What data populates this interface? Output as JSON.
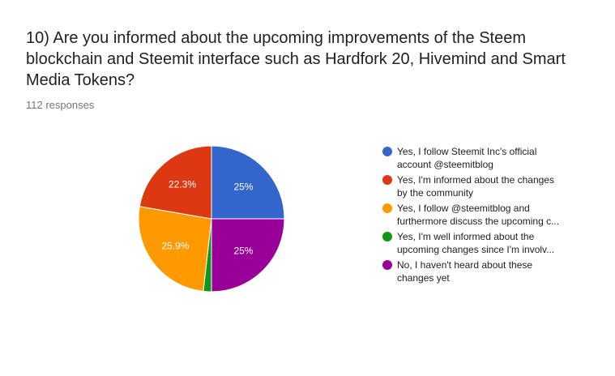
{
  "question": {
    "title": "10) Are you informed about the upcoming improvements of the Steem blockchain and Steemit interface such as Hardfork 20, Hivemind and Smart Media Tokens?",
    "responses": "112 responses"
  },
  "chart_data": {
    "type": "pie",
    "title": "10) Are you informed about the upcoming improvements of the Steem blockchain and Steemit interface such as Hardfork 20, Hivemind and Smart Media Tokens?",
    "total_responses": 112,
    "start": "12 o'clock, clockwise",
    "slices": [
      {
        "category": "Yes, I follow Steemit Inc's official account @steemitblog",
        "legend_lines": [
          "Yes, I follow Steemit Inc's official",
          "account @steemitblog"
        ],
        "percent": 25,
        "label": "25%",
        "color": "#3366cc"
      },
      {
        "category": "No, I haven't heard about these changes yet",
        "legend_lines": [
          "No, I haven't heard about these",
          "changes yet"
        ],
        "percent": 25,
        "label": "25%",
        "color": "#990099"
      },
      {
        "category": "Yes, I'm well informed about the upcoming changes since I'm involv...",
        "legend_lines": [
          "Yes, I'm well informed about the",
          "upcoming changes since I'm involv..."
        ],
        "percent": 1.8,
        "label": "",
        "color": "#109618"
      },
      {
        "category": "Yes, I follow @steemitblog and furthermore discuss the upcoming c...",
        "legend_lines": [
          "Yes, I follow @steemitblog and",
          "furthermore discuss the upcoming c..."
        ],
        "percent": 25.9,
        "label": "25.9%",
        "color": "#ff9900"
      },
      {
        "category": "Yes, I'm informed about the changes by the community",
        "legend_lines": [
          "Yes, I'm informed about the changes",
          "by the community"
        ],
        "percent": 22.3,
        "label": "22.3%",
        "color": "#dc3912"
      }
    ],
    "legend_order": [
      0,
      4,
      3,
      2,
      1
    ],
    "legend_position": "right"
  }
}
